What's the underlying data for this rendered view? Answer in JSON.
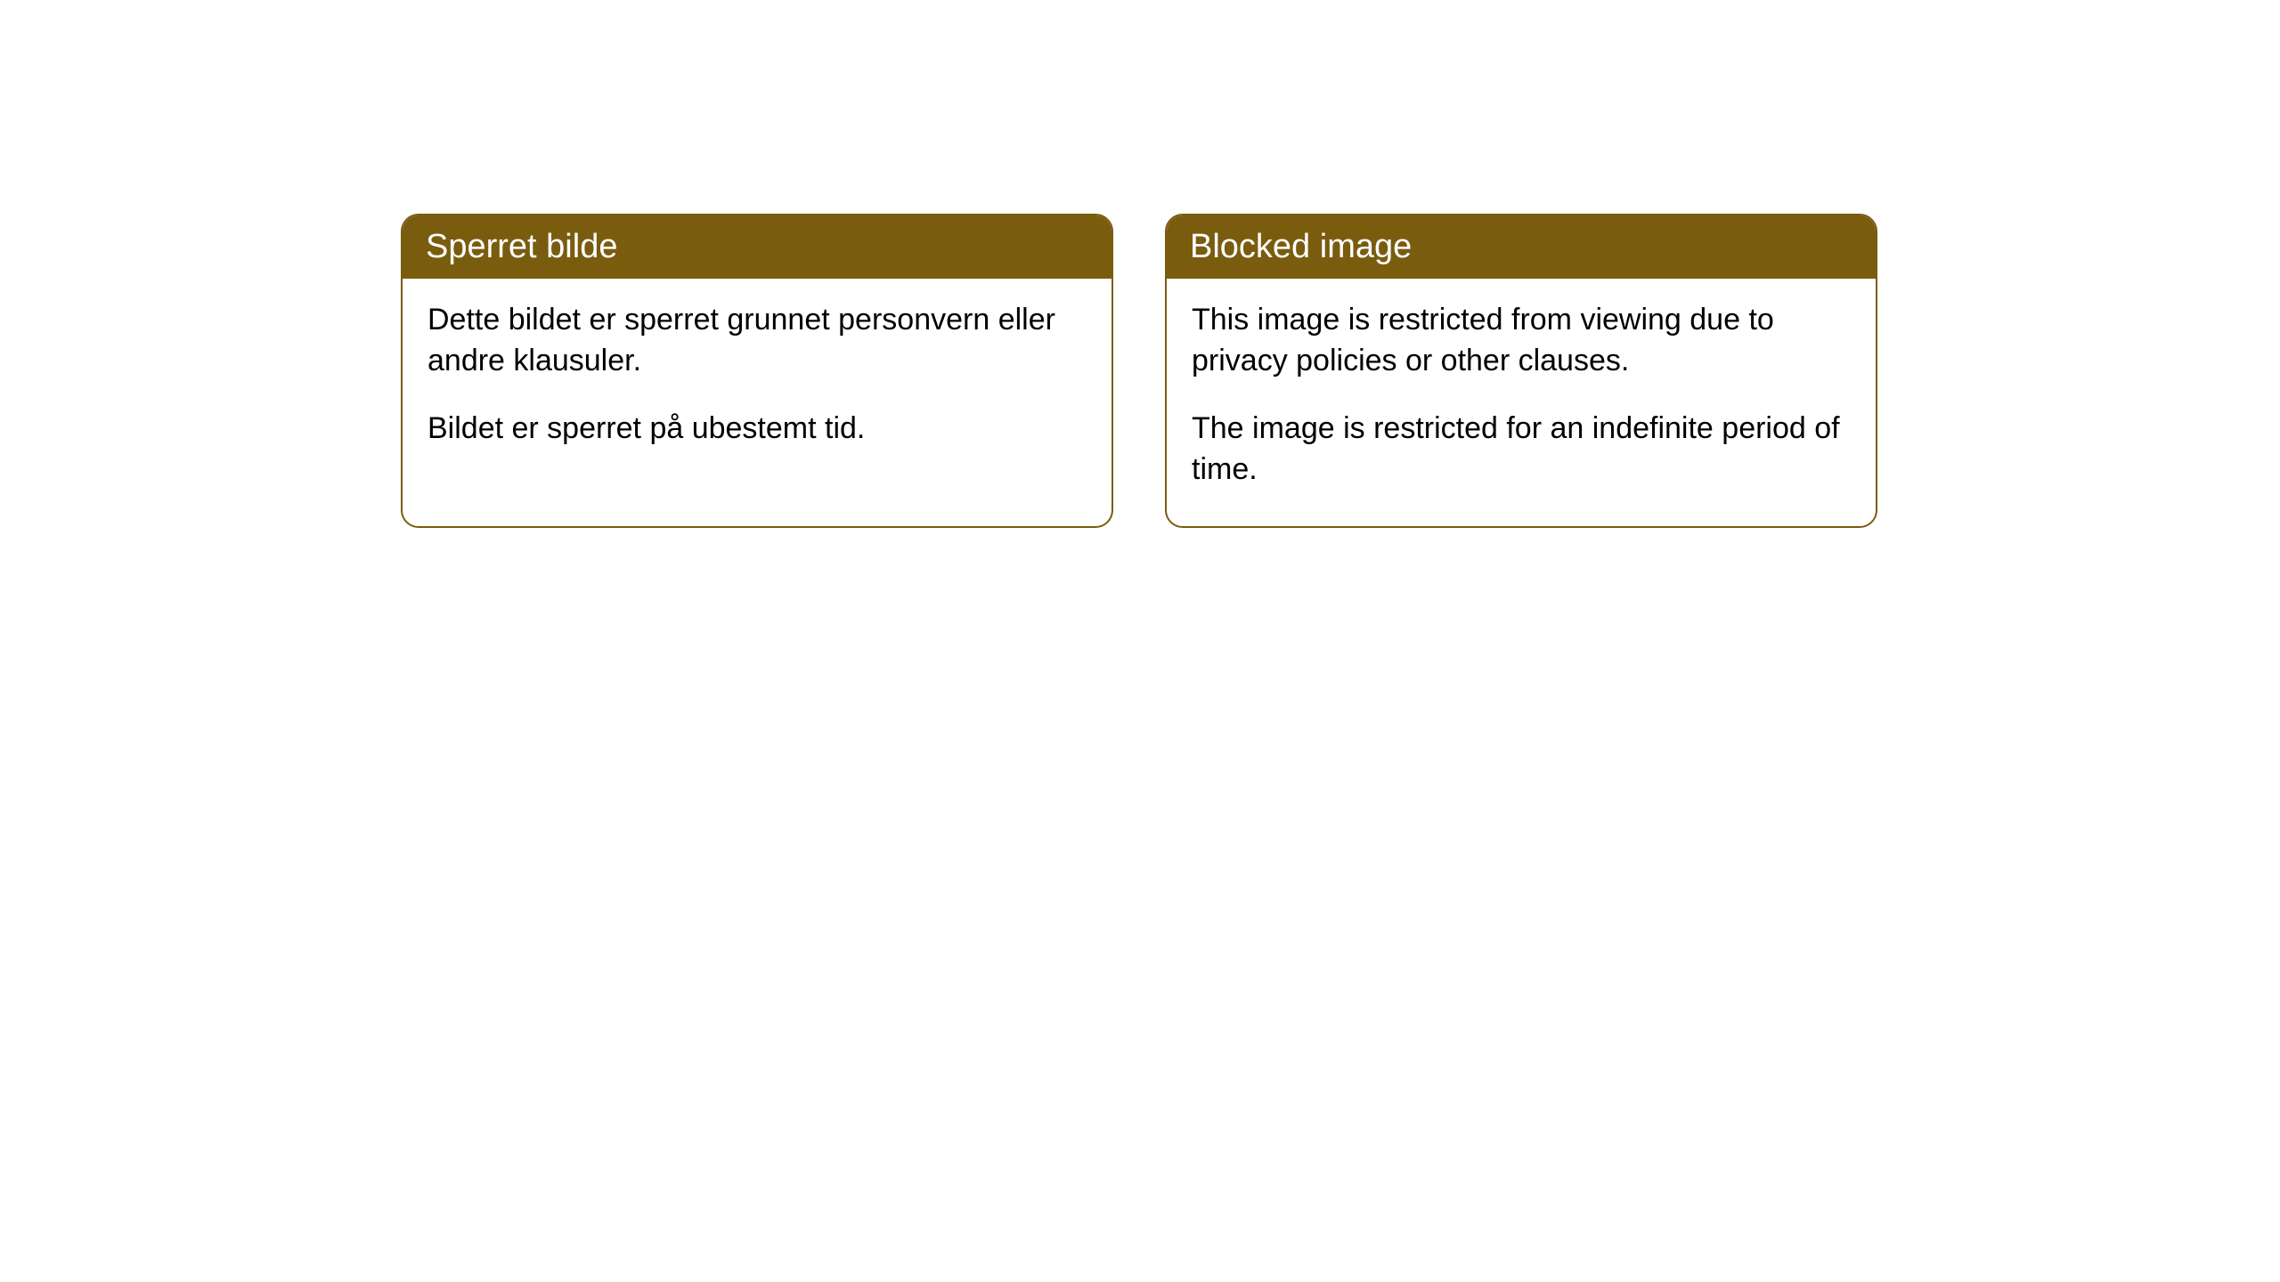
{
  "cards": [
    {
      "title": "Sperret bilde",
      "paragraph1": "Dette bildet er sperret grunnet personvern eller andre klausuler.",
      "paragraph2": "Bildet er sperret på ubestemt tid."
    },
    {
      "title": "Blocked image",
      "paragraph1": "This image is restricted from viewing due to privacy policies or other clauses.",
      "paragraph2": "The image is restricted for an indefinite period of time."
    }
  ],
  "styling": {
    "header_bg_color": "#7a5c0f",
    "header_text_color": "#ffffff",
    "border_color": "#7a5c0f",
    "body_bg_color": "#ffffff",
    "body_text_color": "#000000",
    "border_radius": 20,
    "header_fontsize": 38,
    "body_fontsize": 34
  }
}
